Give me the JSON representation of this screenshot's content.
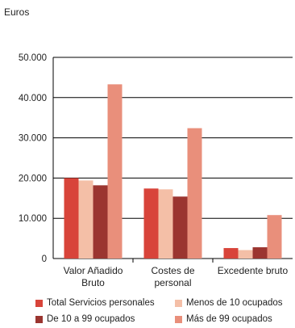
{
  "unit_label": "Euros",
  "colors": {
    "total": "#d8443a",
    "menos10": "#f4bfa7",
    "de10a99": "#9b3530",
    "mas99": "#e98f7b",
    "axis": "#000000",
    "grid": "#000000"
  },
  "legend": [
    {
      "label": "Total Servicios personales",
      "color_key": "total"
    },
    {
      "label": "Menos de 10 ocupados",
      "color_key": "menos10"
    },
    {
      "label": "De 10 a 99 ocupados",
      "color_key": "de10a99"
    },
    {
      "label": "Más de 99 ocupados",
      "color_key": "mas99"
    }
  ],
  "chart_data": {
    "type": "bar",
    "title": "",
    "ylabel": "Euros",
    "ylim": [
      0,
      50000
    ],
    "y_ticks": [
      "0",
      "10.000",
      "20.000",
      "30.000",
      "40.000",
      "50.000"
    ],
    "categories": [
      [
        "Valor Añadido",
        "Bruto"
      ],
      [
        "Costes de",
        "personal"
      ],
      [
        "Excedente bruto"
      ]
    ],
    "series": [
      {
        "name": "Total Servicios personales",
        "color_key": "total",
        "values": [
          20000,
          17400,
          2600
        ]
      },
      {
        "name": "Menos de 10 ocupados",
        "color_key": "menos10",
        "values": [
          19400,
          17200,
          2100
        ]
      },
      {
        "name": "De 10 a 99 ocupados",
        "color_key": "de10a99",
        "values": [
          18200,
          15400,
          2800
        ]
      },
      {
        "name": "Más de 99 ocupados",
        "color_key": "mas99",
        "values": [
          43300,
          32400,
          10800
        ]
      }
    ],
    "grid": true,
    "legend_position": "bottom"
  }
}
